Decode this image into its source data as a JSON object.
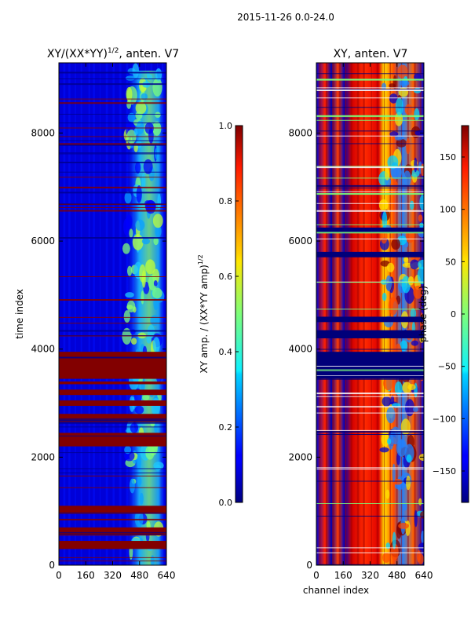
{
  "figure": {
    "suptitle": "2015-11-26 0.0-24.0"
  },
  "chart_data": [
    {
      "type": "heatmap",
      "title": "XY/(XX*YY)",
      "title_superscript": "1/2",
      "title_suffix": ", anten. V7",
      "xlabel": "",
      "ylabel": "time index",
      "xlim": [
        0,
        640
      ],
      "ylim": [
        0,
        9300
      ],
      "x_ticks": [
        "0",
        "160",
        "320",
        "480",
        "640"
      ],
      "y_ticks": [
        "0",
        "2000",
        "4000",
        "6000",
        "8000"
      ],
      "y_tick_values": [
        0,
        2000,
        4000,
        6000,
        8000
      ],
      "x_tick_values": [
        0,
        160,
        320,
        480,
        640
      ],
      "colorbar": {
        "label": "XY amp. / (XX*YY amp)",
        "label_superscript": "1/2",
        "min": 0.0,
        "max": 1.0,
        "ticks": [
          "0.0",
          "0.2",
          "0.4",
          "0.6",
          "0.8",
          "1.0"
        ],
        "tick_values": [
          0.0,
          0.2,
          0.4,
          0.6,
          0.8,
          1.0
        ]
      },
      "flagged_bands_time": [
        [
          3450,
          3950
        ],
        [
          2650,
          2800
        ],
        [
          2200,
          2450
        ],
        [
          950,
          1100
        ],
        [
          550,
          700
        ],
        [
          300,
          450
        ],
        [
          2950,
          3050
        ],
        [
          3150,
          3250
        ],
        [
          3350,
          3400
        ]
      ],
      "active_channel_range": [
        400,
        600
      ],
      "colormap": "jet"
    },
    {
      "type": "heatmap",
      "title": "XY, anten. V7",
      "xlabel": "channel index",
      "ylabel": "",
      "xlim": [
        0,
        640
      ],
      "ylim": [
        0,
        9300
      ],
      "x_ticks": [
        "0",
        "160",
        "320",
        "480",
        "640"
      ],
      "y_ticks": [
        "0",
        "2000",
        "4000",
        "6000",
        "8000"
      ],
      "y_tick_values": [
        0,
        2000,
        4000,
        6000,
        8000
      ],
      "x_tick_values": [
        0,
        160,
        320,
        480,
        640
      ],
      "colorbar": {
        "label": "phase (deg)",
        "min": -180,
        "max": 180,
        "ticks": [
          "150",
          "100",
          "50",
          "0",
          "−50",
          "−100",
          "−150"
        ],
        "tick_values": [
          150,
          100,
          50,
          0,
          -50,
          -100,
          -150
        ]
      },
      "flagged_bands_time": [
        [
          3450,
          3950
        ],
        [
          4200,
          4350
        ],
        [
          5700,
          5800
        ],
        [
          6150,
          6250
        ],
        [
          4500,
          4600
        ]
      ],
      "active_channel_range": [
        400,
        640
      ],
      "colormap": "jet"
    }
  ]
}
